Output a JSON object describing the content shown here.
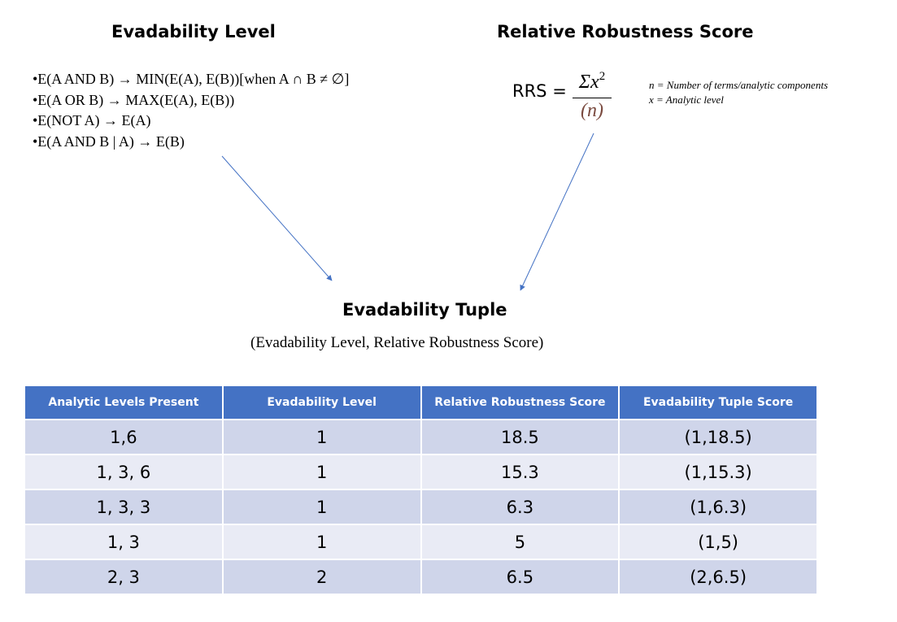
{
  "evadability": {
    "title": "Evadability Level",
    "rules": [
      "•E(A AND B) → MIN(E(A), E(B))[when A ∩ B ≠ ∅]",
      "•E(A OR B) → MAX(E(A), E(B))",
      "•E(NOT A) → E(A)",
      "•E(A AND B | A) → E(B)"
    ]
  },
  "rrs": {
    "title": "Relative Robustness Score",
    "label": "RRS =",
    "numerator": "Σx",
    "exponent": "2",
    "denominator": "(n)",
    "legend": [
      "n = Number of terms/analytic components",
      "x = Analytic level"
    ]
  },
  "tuple": {
    "title": "Evadability Tuple",
    "subtitle": "(Evadability Level, Relative Robustness Score)"
  },
  "table": {
    "headers": [
      "Analytic Levels Present",
      "Evadability Level",
      "Relative Robustness Score",
      "Evadability Tuple Score"
    ],
    "rows": [
      [
        "1,6",
        "1",
        "18.5",
        "(1,18.5)"
      ],
      [
        "1, 3, 6",
        "1",
        "15.3",
        "(1,15.3)"
      ],
      [
        "1, 3, 3",
        "1",
        "6.3",
        "(1,6.3)"
      ],
      [
        "1, 3",
        "1",
        "5",
        "(1,5)"
      ],
      [
        "2, 3",
        "2",
        "6.5",
        "(2,6.5)"
      ]
    ]
  },
  "colors": {
    "header_bg": "#4472c4",
    "row_odd_bg": "#cfd5ea",
    "row_even_bg": "#e9ebf5",
    "arrow": "#4472c4"
  }
}
